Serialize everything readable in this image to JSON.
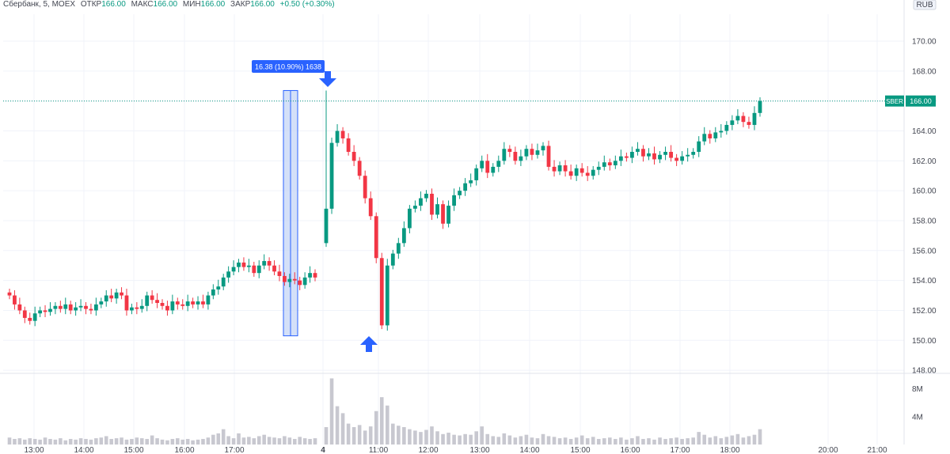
{
  "header": {
    "symbol": "Сбербанк, 5, MOEX",
    "open_label": "ОТКР",
    "open": "166.00",
    "high_label": "МАКС",
    "high": "166.00",
    "low_label": "МИН",
    "low": "166.00",
    "close_label": "ЗАКР",
    "close": "166.00",
    "change": "+0.50 (+0.30%)",
    "currency": "RUB"
  },
  "chart_data": {
    "type": "candlestick",
    "price_ylim": [
      148,
      171
    ],
    "price_ticks": [
      "170.00",
      "168.00",
      "166.00",
      "164.00",
      "162.00",
      "160.00",
      "158.00",
      "156.00",
      "154.00",
      "152.00",
      "150.00",
      "148.00"
    ],
    "volume_ticks": [
      "8M",
      "4M"
    ],
    "x_ticks": [
      "13:00",
      "14:00",
      "15:00",
      "16:00",
      "17:00",
      "4",
      "11:00",
      "12:00",
      "13:00",
      "14:00",
      "15:00",
      "16:00",
      "17:00",
      "18:00",
      "20:00",
      "21:00"
    ],
    "last_price": {
      "symbol": "SBER",
      "value": "166.00",
      "price": 166.0
    },
    "measure": {
      "label": "16.38 (10.90%) 1638",
      "from": 150.3,
      "to": 166.7
    },
    "arrows": [
      {
        "dir": "down",
        "price": 166.7
      },
      {
        "dir": "up",
        "price": 150.7
      }
    ],
    "colors": {
      "up": "#089981",
      "down": "#f23645",
      "volume": "#c8c8d0",
      "accent": "#2962ff",
      "measure_fill": "#c5d5f6"
    },
    "day1_close": [
      153.0,
      152.4,
      152.0,
      151.5,
      151.3,
      151.8,
      152.0,
      151.9,
      152.1,
      152.3,
      152.1,
      152.4,
      152.0,
      152.2,
      152.3,
      152.1,
      152.0,
      152.4,
      152.6,
      153.0,
      152.8,
      153.2,
      153.0,
      152.0,
      152.2,
      152.1,
      152.3,
      153.0,
      152.7,
      152.5,
      152.3,
      152.0,
      152.6,
      152.4,
      152.3,
      152.6,
      152.4,
      152.6,
      152.4,
      153.0,
      153.4,
      153.6,
      154.2,
      154.6,
      154.9,
      155.2,
      154.9,
      155.0,
      154.5,
      155.0,
      155.3,
      155.0,
      154.6,
      154.3,
      153.9,
      154.1,
      154.0,
      153.7,
      154.2,
      154.5,
      154.2
    ],
    "day2_close": [
      158.8,
      163.2,
      164.0,
      163.5,
      162.6,
      162.0,
      161.0,
      159.5,
      158.3,
      155.5,
      151.0,
      155.0,
      155.8,
      156.5,
      157.5,
      158.8,
      159.0,
      159.5,
      159.8,
      158.4,
      159.1,
      157.8,
      159.0,
      159.7,
      160.0,
      160.5,
      160.7,
      161.5,
      162.0,
      161.2,
      161.6,
      162.0,
      162.8,
      162.6,
      162.0,
      162.3,
      162.8,
      162.4,
      162.7,
      163.0,
      161.6,
      161.3,
      161.7,
      161.3,
      161.0,
      161.5,
      161.2,
      161.0,
      161.4,
      161.6,
      161.9,
      161.7,
      162.0,
      162.3,
      162.2,
      162.6,
      162.8,
      162.3,
      162.5,
      162.1,
      162.4,
      162.6,
      162.2,
      162.0,
      162.3,
      162.4,
      162.6,
      163.3,
      163.8,
      163.5,
      163.9,
      164.0,
      164.4,
      164.7,
      165.0,
      164.6,
      164.4,
      165.2,
      166.0
    ],
    "day1_volume": [
      1.0,
      0.8,
      0.9,
      0.7,
      0.9,
      0.8,
      0.7,
      1.0,
      0.8,
      0.7,
      0.9,
      0.6,
      0.8,
      0.7,
      0.9,
      0.8,
      0.7,
      0.9,
      1.0,
      1.2,
      0.8,
      0.9,
      1.0,
      0.7,
      0.8,
      1.0,
      0.9,
      0.8,
      1.3,
      0.9,
      0.7,
      0.6,
      0.8,
      0.9,
      0.7,
      0.8,
      0.6,
      0.7,
      0.8,
      1.0,
      1.4,
      1.6,
      2.2,
      1.2,
      0.9,
      1.6,
      1.0,
      1.1,
      0.9,
      1.2,
      1.4,
      1.1,
      1.0,
      0.9,
      1.2,
      1.0,
      0.8,
      1.1,
      0.9,
      0.8,
      0.9
    ],
    "day2_volume": [
      2.5,
      9.5,
      5.5,
      4.5,
      3.0,
      2.5,
      2.8,
      2.0,
      2.6,
      4.8,
      6.8,
      5.6,
      3.0,
      2.7,
      2.5,
      2.2,
      2.0,
      1.8,
      2.1,
      2.6,
      1.9,
      1.5,
      1.7,
      1.4,
      1.3,
      1.5,
      1.4,
      1.9,
      2.6,
      1.5,
      1.2,
      1.1,
      1.6,
      1.3,
      1.0,
      1.2,
      1.4,
      1.0,
      0.9,
      1.5,
      1.2,
      1.1,
      0.9,
      1.0,
      0.8,
      1.0,
      1.3,
      0.9,
      1.1,
      0.8,
      0.9,
      1.0,
      0.8,
      1.0,
      0.7,
      0.9,
      1.2,
      0.8,
      0.9,
      0.7,
      1.0,
      0.8,
      0.9,
      1.0,
      0.8,
      0.9,
      1.0,
      1.8,
      1.4,
      1.0,
      1.2,
      0.9,
      1.1,
      1.3,
      1.5,
      1.0,
      1.2,
      1.4,
      2.2
    ]
  }
}
